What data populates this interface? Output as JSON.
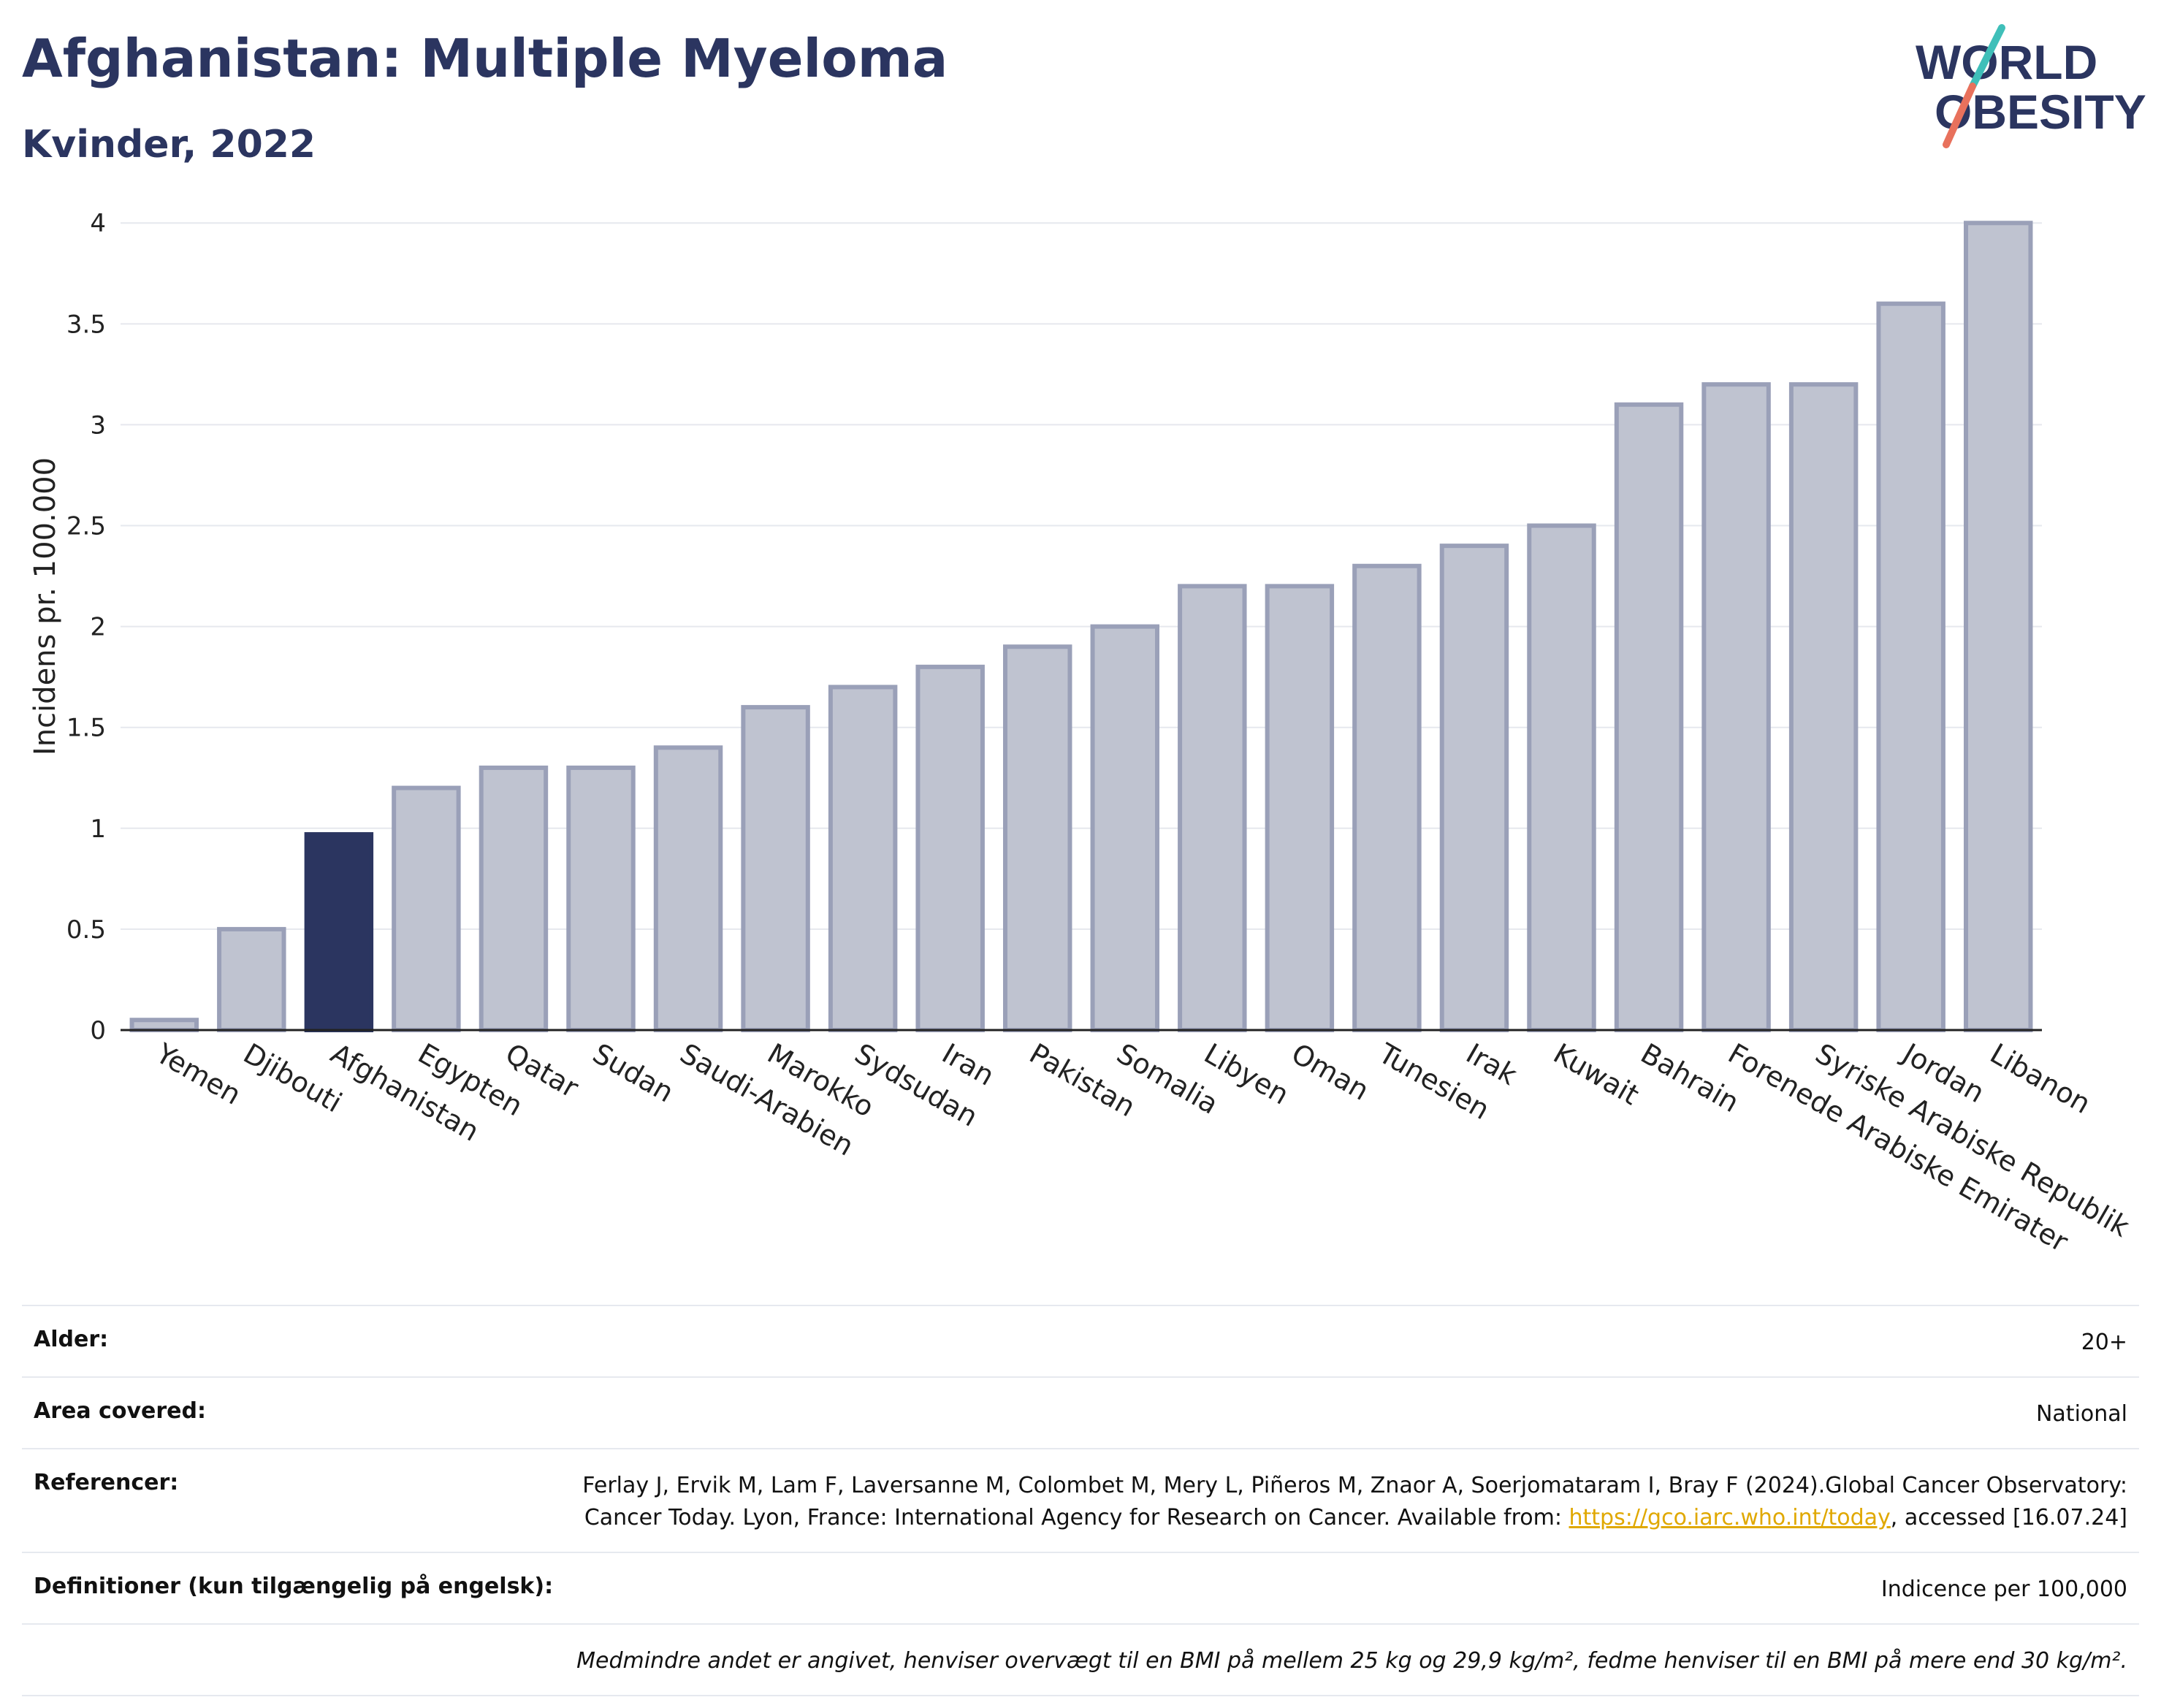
{
  "header": {
    "title": "Afghanistan: Multiple Myeloma",
    "subtitle": "Kvinder, 2022"
  },
  "logo": {
    "line1": "WORLD",
    "line2": "OBESITY",
    "colors": {
      "text": "#2b3560",
      "slash_teal": "#3fbfb9",
      "slash_red": "#e8715c"
    }
  },
  "chart_data": {
    "type": "bar",
    "title": "",
    "xlabel": "",
    "ylabel": "Incidens pr. 100.000",
    "ylim": [
      0,
      4.2
    ],
    "yticks": [
      "0",
      "0.5",
      "1",
      "1.5",
      "2",
      "2.5",
      "3",
      "3.5",
      "4"
    ],
    "ytick_values": [
      0,
      0.5,
      1,
      1.5,
      2,
      2.5,
      3,
      3.5,
      4
    ],
    "grid": true,
    "highlight": "Afghanistan",
    "colors": {
      "bar": "#bfc3d0",
      "bar_stroke": "#9aa0b8",
      "highlight": "#2b3560"
    },
    "categories": [
      "Yemen",
      "Djibouti",
      "Afghanistan",
      "Egypten",
      "Qatar",
      "Sudan",
      "Saudi-Arabien",
      "Marokko",
      "Sydsudan",
      "Iran",
      "Pakistan",
      "Somalia",
      "Libyen",
      "Oman",
      "Tunesien",
      "Irak",
      "Kuwait",
      "Bahrain",
      "Forenede Arabiske Emirater",
      "Syriske Arabiske Republik",
      "Jordan",
      "Libanon"
    ],
    "values": [
      0.05,
      0.5,
      0.97,
      1.2,
      1.3,
      1.3,
      1.4,
      1.6,
      1.7,
      1.8,
      1.9,
      2.0,
      2.2,
      2.2,
      2.3,
      2.4,
      2.5,
      3.1,
      3.2,
      3.2,
      3.6,
      4.0
    ]
  },
  "info": {
    "age": {
      "label": "Alder:",
      "value": "20+"
    },
    "area": {
      "label": "Area covered:",
      "value": "National"
    },
    "references": {
      "label": "Referencer:",
      "text_before": "Ferlay J, Ervik M, Lam F, Laversanne M, Colombet M, Mery L, Piñeros M, Znaor A, Soerjomataram I, Bray F (2024).Global Cancer Observatory: Cancer Today. Lyon, France: International Agency for Research on Cancer. Available from: ",
      "link": "https://gco.iarc.who.int/today",
      "text_after": ", accessed [16.07.24]"
    },
    "definitions": {
      "label": "Definitioner (kun tilgængelig på engelsk):",
      "value": "Indicence per 100,000"
    },
    "note": "Medmindre andet er angivet, henviser overvægt til en BMI på mellem 25 kg og 29,9 kg/m², fedme henviser til en BMI på mere end 30 kg/m²."
  }
}
